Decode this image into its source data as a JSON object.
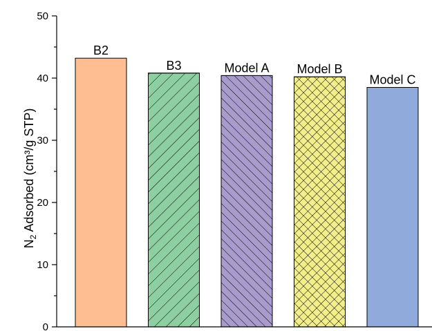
{
  "chart_data": {
    "type": "bar",
    "categories": [
      "B2",
      "B3",
      "Model A",
      "Model B",
      "Model C"
    ],
    "values": [
      43.2,
      40.8,
      40.4,
      40.2,
      38.5
    ],
    "ylabel_main": "N",
    "ylabel_sub": "2",
    "ylabel_rest": " Adsorbed (cm³/g STP)",
    "xlabel": "",
    "ylim": [
      0,
      50
    ],
    "yticks": [
      0,
      10,
      20,
      30,
      40,
      50
    ],
    "grid": false,
    "bars": [
      {
        "fill": "#FFBE91",
        "pattern": "none"
      },
      {
        "fill": "#8ECFA1",
        "pattern": "forward-diagonal"
      },
      {
        "fill": "#A99BCC",
        "pattern": "back-diagonal"
      },
      {
        "fill": "#F2EE8C",
        "pattern": "crosshatch"
      },
      {
        "fill": "#8FAADB",
        "pattern": "none"
      }
    ]
  }
}
